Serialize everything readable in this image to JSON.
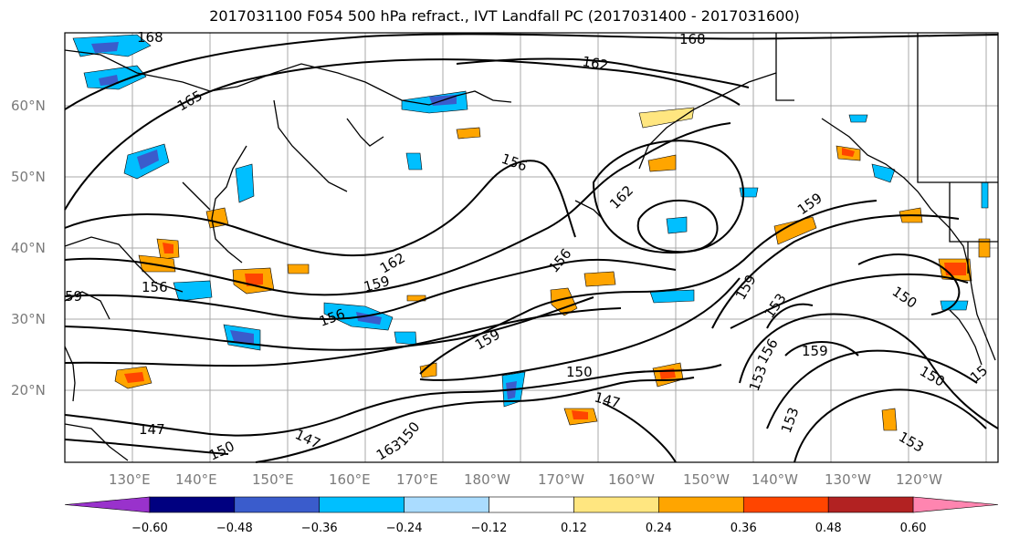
{
  "title": "2017031100 F054 500 hPa refract., IVT Landfall PC (2017031400 - 2017031600)",
  "lat_labels": [
    "60°N",
    "50°N",
    "40°N",
    "30°N",
    "20°N"
  ],
  "lon_labels": [
    "130°E",
    "140°E",
    "150°E",
    "160°E",
    "170°E",
    "180°W",
    "170°W",
    "160°W",
    "150°W",
    "140°W",
    "130°W",
    "120°W"
  ],
  "contour_labels": [
    "168",
    "162",
    "168",
    "165",
    "156",
    "162",
    "156",
    "162",
    "156",
    "159",
    "159",
    "156",
    "159",
    "153",
    "150",
    "159",
    "159",
    "150",
    "156",
    "153",
    "153",
    "150",
    "147",
    "147",
    "147",
    "150",
    "163",
    "150",
    "15",
    "59",
    "153"
  ],
  "colorbar": {
    "colors": [
      "#9932cc",
      "#000080",
      "#3a5ccc",
      "#00bfff",
      "#aadcff",
      "#ffffff",
      "#ffe680",
      "#ffa500",
      "#ff4500",
      "#b22222",
      "#ff85b0"
    ],
    "tick_labels": [
      "−0.60",
      "−0.48",
      "−0.36",
      "−0.24",
      "−0.12",
      "0.12",
      "0.24",
      "0.36",
      "0.48",
      "0.60"
    ]
  },
  "colors": {
    "contour": "#000000",
    "grid": "#a0a0a0",
    "coast": "#000000"
  }
}
